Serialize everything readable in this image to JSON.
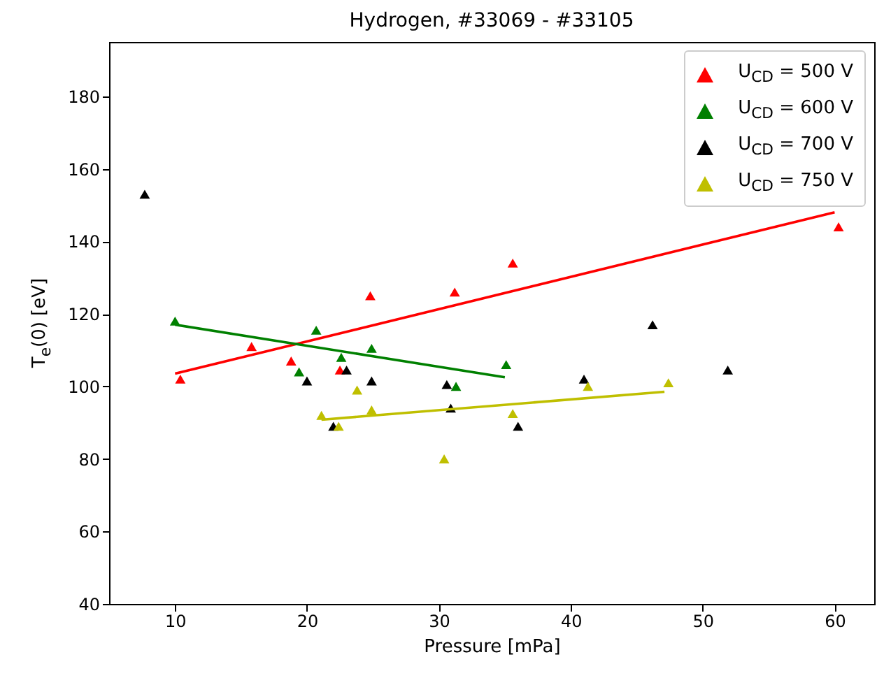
{
  "chart_data": {
    "type": "scatter",
    "title": "Hydrogen, #33069 - #33105",
    "xlabel": "Pressure [mPa]",
    "ylabel": "T$_{e}$(0) [eV]",
    "xlim": [
      5,
      63
    ],
    "ylim": [
      40,
      195
    ],
    "xticks": [
      10,
      20,
      30,
      40,
      50,
      60
    ],
    "yticks": [
      40,
      60,
      80,
      100,
      120,
      140,
      160,
      180
    ],
    "grid": false,
    "legend": "top right",
    "marker": "triangle",
    "series": [
      {
        "name": "U$_{CD}$ = 500 V",
        "color": "#ff0000",
        "x": [
          10.4,
          15.8,
          18.8,
          22.5,
          24.8,
          31.2,
          35.6,
          60.3
        ],
        "values": [
          102,
          111,
          107,
          104.5,
          125,
          126,
          134,
          144
        ]
      },
      {
        "name": "U$_{CD}$ = 600 V",
        "color": "#008000",
        "x": [
          10,
          19.4,
          20.7,
          22.6,
          24.9,
          31.3,
          35.1
        ],
        "values": [
          118,
          104,
          115.5,
          108,
          110.5,
          100,
          106
        ]
      },
      {
        "name": "U$_{CD}$ = 700 V",
        "color": "#000000",
        "x": [
          7.7,
          20,
          22,
          23,
          24.9,
          30.6,
          30.9,
          36,
          41,
          46.2,
          51.9
        ],
        "values": [
          153,
          101.5,
          89,
          104.5,
          101.5,
          100.5,
          94,
          89,
          102,
          117,
          104.5
        ]
      },
      {
        "name": "U$_{CD}$ = 750 V",
        "color": "#bfbf00",
        "x": [
          21.1,
          22.4,
          23.8,
          24.9,
          30.4,
          35.6,
          41.3,
          47.4
        ],
        "values": [
          92,
          89,
          99,
          93.5,
          80,
          92.5,
          100,
          101
        ]
      },
      {
        "type": "line",
        "marker": "none",
        "color": "#ff0000",
        "x": [
          10,
          60
        ],
        "values": [
          103.5,
          148
        ]
      },
      {
        "type": "line",
        "marker": "none",
        "color": "#008000",
        "x": [
          10,
          35
        ],
        "values": [
          117,
          102.5
        ]
      },
      {
        "type": "line",
        "marker": "none",
        "color": "#bfbf00",
        "x": [
          21.1,
          47.1
        ],
        "values": [
          90.8,
          98.5
        ]
      }
    ]
  }
}
